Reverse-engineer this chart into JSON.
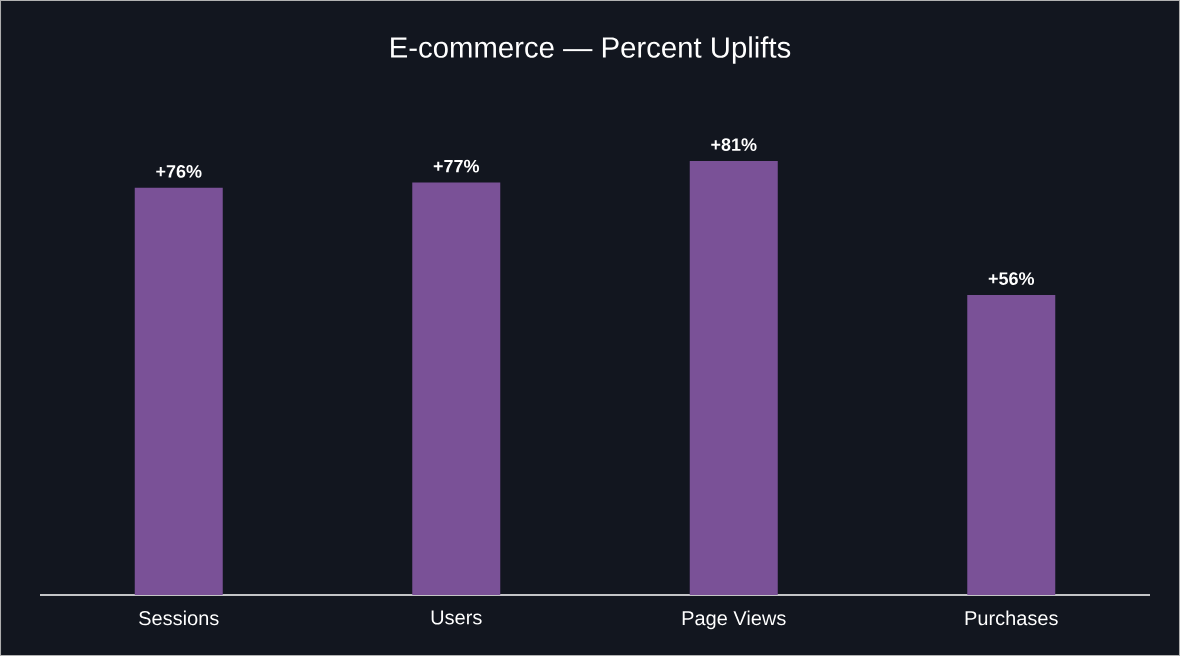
{
  "chart_data": {
    "type": "bar",
    "title": "E-commerce  — Percent Uplifts",
    "categories": [
      "Sessions",
      "Users",
      "Page Views",
      "Purchases"
    ],
    "values": [
      76,
      77,
      81,
      56
    ],
    "value_labels": [
      "+76%",
      "+77%",
      "+81%",
      "+56%"
    ],
    "color": "#7a5197"
  }
}
